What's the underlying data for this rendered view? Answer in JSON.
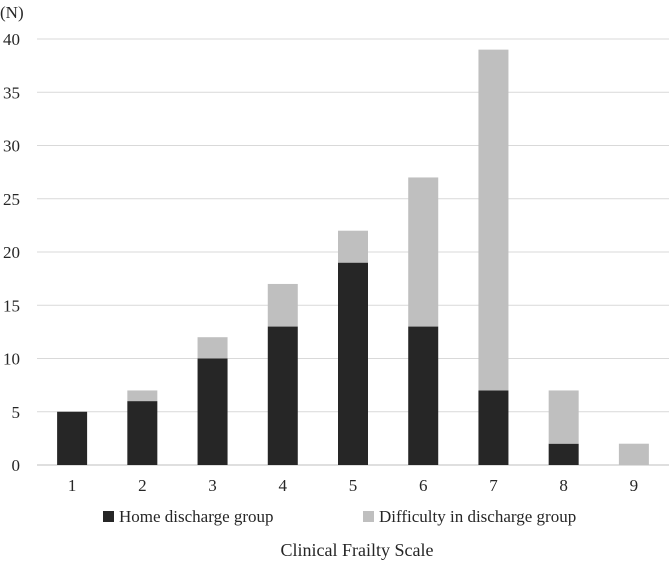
{
  "chart_data": {
    "type": "bar",
    "stacked": true,
    "categories": [
      "1",
      "2",
      "3",
      "4",
      "5",
      "6",
      "7",
      "8",
      "9"
    ],
    "series": [
      {
        "name": "Home discharge group",
        "values": [
          5,
          6,
          10,
          13,
          19,
          13,
          7,
          2,
          0
        ],
        "color": "#262626"
      },
      {
        "name": "Difficulty in discharge group",
        "values": [
          0,
          1,
          2,
          4,
          3,
          14,
          32,
          5,
          2
        ],
        "color": "#bfbfbf"
      }
    ],
    "xlabel": "Clinical Frailty Scale",
    "ylabel": "(N)",
    "ylim": [
      0,
      40
    ],
    "yticks": [
      0,
      5,
      10,
      15,
      20,
      25,
      30,
      35,
      40
    ],
    "grid": true,
    "legend_position": "bottom"
  }
}
